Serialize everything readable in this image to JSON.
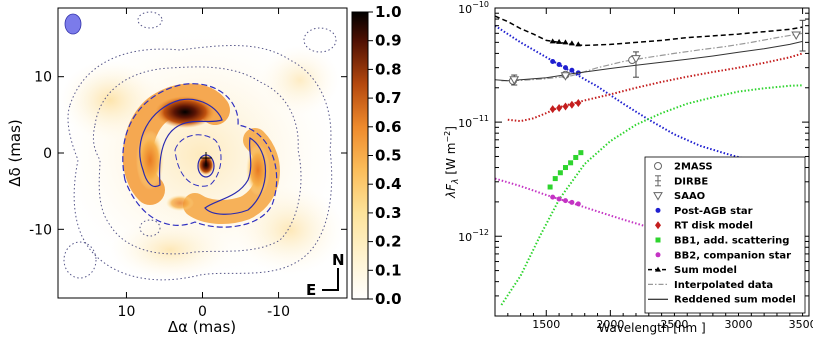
{
  "chart_data": [
    {
      "type": "heatmap",
      "xlabel": "Δα (mas)",
      "ylabel": "Δδ (mas)",
      "xlim": [
        19,
        -19
      ],
      "ylim": [
        -19,
        19
      ],
      "xticks": [
        {
          "v": 10,
          "label": "10"
        },
        {
          "v": 0,
          "label": "0"
        },
        {
          "v": -10,
          "label": "-10"
        }
      ],
      "yticks": [
        {
          "v": 10,
          "label": "10"
        },
        {
          "v": 0,
          "label": "0"
        },
        {
          "v": -10,
          "label": "-10"
        }
      ],
      "colorbar": {
        "min": 0.0,
        "max": 1.0,
        "ticks": [
          "0.0",
          "0.1",
          "0.2",
          "0.3",
          "0.4",
          "0.5",
          "0.6",
          "0.7",
          "0.8",
          "0.9",
          "1.0"
        ]
      },
      "compass": {
        "north": "N",
        "east": "E"
      },
      "grid": false,
      "beam_color": "#7b7bea"
    },
    {
      "type": "line",
      "xlabel": "Wavelength [nm ]",
      "ylabel": "λF",
      "ylabel_sub": "λ",
      "ylabel_units": "[W  m",
      "ylabel_sup": "−2",
      "xlim": [
        1100,
        3550
      ],
      "ylim": [
        2e-13,
        1e-10
      ],
      "yscale": "log",
      "xticks": [
        {
          "v": 1500,
          "label": "1500"
        },
        {
          "v": 2000,
          "label": "2000"
        },
        {
          "v": 2500,
          "label": "2500"
        },
        {
          "v": 3000,
          "label": "3000"
        },
        {
          "v": 3500,
          "label": "3500"
        }
      ],
      "yticks": [
        {
          "v": 1e-10,
          "base": "10",
          "exp": "−10"
        },
        {
          "v": 1e-11,
          "base": "10",
          "exp": "−11"
        },
        {
          "v": 1e-12,
          "base": "10",
          "exp": "−12"
        }
      ],
      "legend_position": "lower-right",
      "legend": [
        {
          "label": "2MASS",
          "marker": "circle-open",
          "color": "#666666"
        },
        {
          "label": "DIRBE",
          "marker": "errorbar",
          "color": "#666666"
        },
        {
          "label": "SAAO",
          "marker": "triangle-open",
          "color": "#666666"
        },
        {
          "label": "Post-AGB star",
          "marker": "dot",
          "color": "#1f1fd0"
        },
        {
          "label": "RT disk model",
          "marker": "diamond",
          "color": "#c41e1e"
        },
        {
          "label": "BB1, add. scattering",
          "marker": "square",
          "color": "#2ed42e"
        },
        {
          "label": "BB2, companion star",
          "marker": "dot",
          "color": "#c433c4"
        },
        {
          "label": "Sum model",
          "marker": "dash-triangle",
          "color": "#000000"
        },
        {
          "label": "Interpolated data",
          "marker": "dashdot",
          "color": "#999999"
        },
        {
          "label": "Reddened sum model",
          "marker": "line",
          "color": "#000000"
        }
      ],
      "series": [
        {
          "id": "postagb",
          "color": "#1f1fd0",
          "x": [
            1100,
            1300,
            1500,
            1700,
            1900,
            2100,
            2300,
            2500,
            2700,
            2900,
            3100,
            3300,
            3500
          ],
          "y": [
            7e-11,
            5e-11,
            3.7e-11,
            2.75e-11,
            2.05e-11,
            1.45e-11,
            1.05e-11,
            7.8e-12,
            6.2e-12,
            5.3e-12,
            4.6e-12,
            4.2e-12,
            3.9e-12
          ],
          "points_x": [
            1550,
            1600,
            1650,
            1700,
            1750
          ],
          "points_y": [
            3.4e-11,
            3.2e-11,
            3e-11,
            2.85e-11,
            2.7e-11
          ]
        },
        {
          "id": "rtdisk",
          "color": "#c41e1e",
          "x": [
            1200,
            1300,
            1400,
            1500,
            1600,
            1800,
            2000,
            2200,
            2400,
            2600,
            2800,
            3000,
            3200,
            3400,
            3500
          ],
          "y": [
            1.05e-11,
            1.02e-11,
            1.08e-11,
            1.2e-11,
            1.35e-11,
            1.55e-11,
            1.75e-11,
            2e-11,
            2.25e-11,
            2.5e-11,
            2.75e-11,
            3e-11,
            3.3e-11,
            3.7e-11,
            4e-11
          ],
          "points_x": [
            1550,
            1600,
            1650,
            1700,
            1750
          ],
          "points_y": [
            1.3e-11,
            1.33e-11,
            1.37e-11,
            1.42e-11,
            1.47e-11
          ]
        },
        {
          "id": "bb1",
          "color": "#2ed42e",
          "x": [
            1150,
            1300,
            1450,
            1600,
            1800,
            2000,
            2200,
            2400,
            2600,
            2800,
            3000,
            3200,
            3400,
            3500
          ],
          "y": [
            2.5e-13,
            4.5e-13,
            1e-12,
            2.1e-12,
            4.3e-12,
            6.8e-12,
            9.5e-12,
            1.2e-11,
            1.45e-11,
            1.65e-11,
            1.85e-11,
            1.98e-11,
            2.08e-11,
            2.1e-11
          ],
          "points_x": [
            1530,
            1570,
            1610,
            1650,
            1690,
            1730,
            1770
          ],
          "points_y": [
            2.7e-12,
            3.2e-12,
            3.6e-12,
            4e-12,
            4.4e-12,
            4.9e-12,
            5.4e-12
          ]
        },
        {
          "id": "bb2",
          "color": "#c433c4",
          "x": [
            1100,
            1300,
            1500,
            1700,
            1900,
            2100,
            2300,
            2500,
            2700,
            2900,
            3100,
            3300,
            3500
          ],
          "y": [
            3.2e-12,
            2.75e-12,
            2.3e-12,
            1.95e-12,
            1.65e-12,
            1.4e-12,
            1.2e-12,
            1.02e-12,
            8.8e-13,
            7.6e-13,
            6.6e-13,
            5.8e-13,
            5.1e-13
          ],
          "points_x": [
            1550,
            1600,
            1650,
            1700,
            1750
          ],
          "points_y": [
            2.2e-12,
            2.12e-12,
            2.05e-12,
            1.98e-12,
            1.92e-12
          ]
        },
        {
          "id": "sum",
          "color": "#000000",
          "x": [
            1100,
            1200,
            1300,
            1400,
            1500,
            1600,
            1700,
            1800,
            2000,
            2200,
            2400,
            2600,
            2800,
            3000,
            3200,
            3400,
            3500
          ],
          "y": [
            8.5e-11,
            7.6e-11,
            6.6e-11,
            5.9e-11,
            5.2e-11,
            5e-11,
            4.8e-11,
            4.7e-11,
            4.8e-11,
            5e-11,
            5.2e-11,
            5.5e-11,
            5.7e-11,
            5.9e-11,
            6.2e-11,
            6.5e-11,
            6.8e-11
          ],
          "points_x": [
            1550,
            1600,
            1650,
            1700,
            1750
          ],
          "points_y": [
            5.1e-11,
            5.05e-11,
            5e-11,
            4.9e-11,
            4.8e-11
          ]
        },
        {
          "id": "interp",
          "color": "#999999",
          "x": [
            1150,
            1300,
            1500,
            1700,
            1900,
            2100,
            2300,
            2500,
            2700,
            2900,
            3100,
            3300,
            3500
          ],
          "y": [
            2.3e-11,
            2.32e-11,
            2.4e-11,
            2.55e-11,
            3e-11,
            3.4e-11,
            3.7e-11,
            4e-11,
            4.3e-11,
            4.6e-11,
            5e-11,
            5.5e-11,
            6e-11
          ]
        },
        {
          "id": "reddened",
          "color": "#333333",
          "x": [
            1100,
            1200,
            1300,
            1400,
            1500,
            1600,
            1700,
            1800,
            2000,
            2200,
            2400,
            2600,
            2800,
            3000,
            3200,
            3400,
            3500
          ],
          "y": [
            2.35e-11,
            2.3e-11,
            2.35e-11,
            2.4e-11,
            2.45e-11,
            2.55e-11,
            2.65e-11,
            2.75e-11,
            2.95e-11,
            3.15e-11,
            3.35e-11,
            3.55e-11,
            3.8e-11,
            4.1e-11,
            4.4e-11,
            4.8e-11,
            5.1e-11
          ]
        }
      ],
      "observations": {
        "twomass": {
          "x": [
            1240,
            1650,
            2170
          ],
          "y": [
            2.3e-11,
            2.6e-11,
            3.5e-11
          ],
          "color": "#666666"
        },
        "dirbe": {
          "x": [
            1250,
            2200,
            3500
          ],
          "y": [
            2.35e-11,
            3.3e-11,
            6e-11
          ],
          "err": [
            0.1,
            0.25,
            0.3
          ],
          "color": "#444444"
        },
        "saao": {
          "x": [
            1250,
            1650,
            2200,
            3450
          ],
          "y": [
            2.35e-11,
            2.55e-11,
            3.6e-11,
            5.8e-11
          ],
          "color": "#666666"
        }
      }
    }
  ]
}
